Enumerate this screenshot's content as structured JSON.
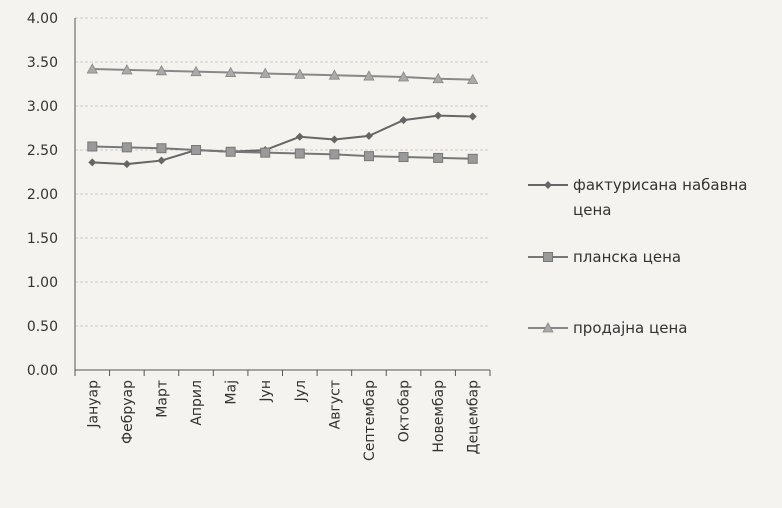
{
  "chart_data": {
    "type": "line",
    "title": "",
    "xlabel": "",
    "ylabel": "",
    "ylim": [
      0,
      4
    ],
    "yticks": [
      "0.00",
      "0.50",
      "1.00",
      "1.50",
      "2.00",
      "2.50",
      "3.00",
      "3.50",
      "4.00"
    ],
    "grid": true,
    "legend": "right",
    "categories": [
      "Јануар",
      "Фебруар",
      "Март",
      "Април",
      "Мај",
      "Јун",
      "Јул",
      "Август",
      "Септембар",
      "Октобар",
      "Новембар",
      "Децембар"
    ],
    "series": [
      {
        "name": "фактурисана набавна цена",
        "name_lines": [
          "фактурисана набавна",
          "цена"
        ],
        "marker": "diamond",
        "color": "#666666",
        "values": [
          2.36,
          2.34,
          2.38,
          2.5,
          2.48,
          2.5,
          2.65,
          2.62,
          2.66,
          2.84,
          2.89,
          2.88
        ]
      },
      {
        "name": "планска цена",
        "name_lines": [
          "планска цена"
        ],
        "marker": "square",
        "color": "#777777",
        "values": [
          2.54,
          2.53,
          2.52,
          2.5,
          2.48,
          2.47,
          2.46,
          2.45,
          2.43,
          2.42,
          2.41,
          2.4
        ]
      },
      {
        "name": "продајна цена",
        "name_lines": [
          "продајна цена"
        ],
        "marker": "triangle",
        "color": "#888888",
        "values": [
          3.42,
          3.41,
          3.4,
          3.39,
          3.38,
          3.37,
          3.36,
          3.35,
          3.34,
          3.33,
          3.31,
          3.3
        ]
      }
    ]
  }
}
